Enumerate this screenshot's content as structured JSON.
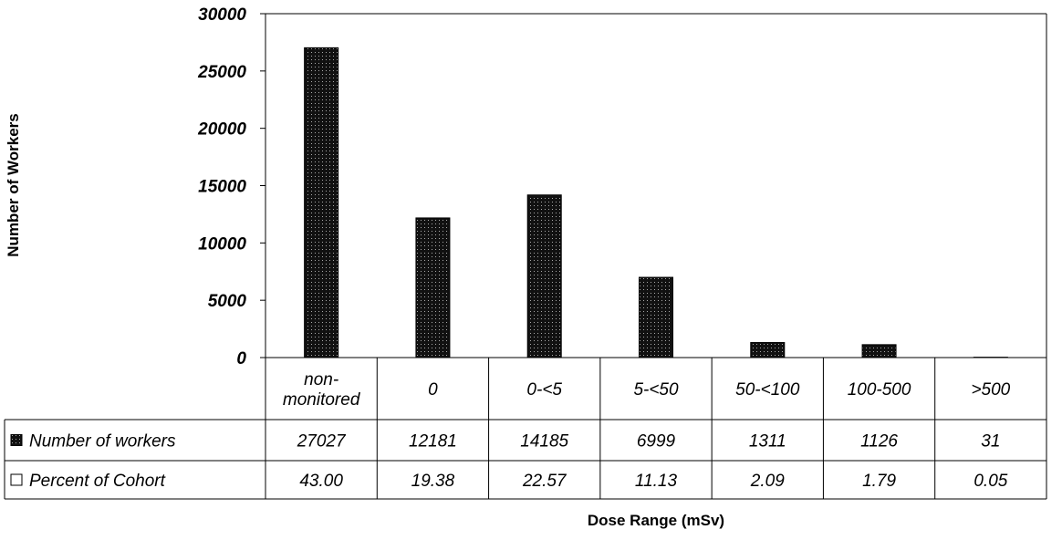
{
  "chart_data": {
    "type": "bar",
    "title": "",
    "xlabel": "Dose Range (mSv)",
    "ylabel": "Number of Workers",
    "categories": [
      [
        "non-",
        "monitored"
      ],
      [
        "0"
      ],
      [
        "0-<5"
      ],
      [
        "5-<50"
      ],
      [
        "50-<100"
      ],
      [
        "100-500"
      ],
      [
        ">500"
      ]
    ],
    "ylim": [
      0,
      30000
    ],
    "yticks": [
      "0",
      "5000",
      "10000",
      "15000",
      "20000",
      "25000",
      "30000"
    ],
    "series": [
      {
        "name": "Number of workers",
        "values": [
          27027,
          12181,
          14185,
          6999,
          1311,
          1126,
          31
        ],
        "cells": [
          "27027",
          "12181",
          "14185",
          "6999",
          "1311",
          "1126",
          "31"
        ],
        "color": "#000000"
      },
      {
        "name": "Percent of Cohort",
        "values": [
          43.0,
          19.38,
          22.57,
          11.13,
          2.09,
          1.79,
          0.05
        ],
        "cells": [
          "43.00",
          "19.38",
          "22.57",
          "11.13",
          "2.09",
          "1.79",
          "0.05"
        ],
        "color": "#ffffff"
      }
    ],
    "grid": false,
    "legend": "data-table"
  }
}
